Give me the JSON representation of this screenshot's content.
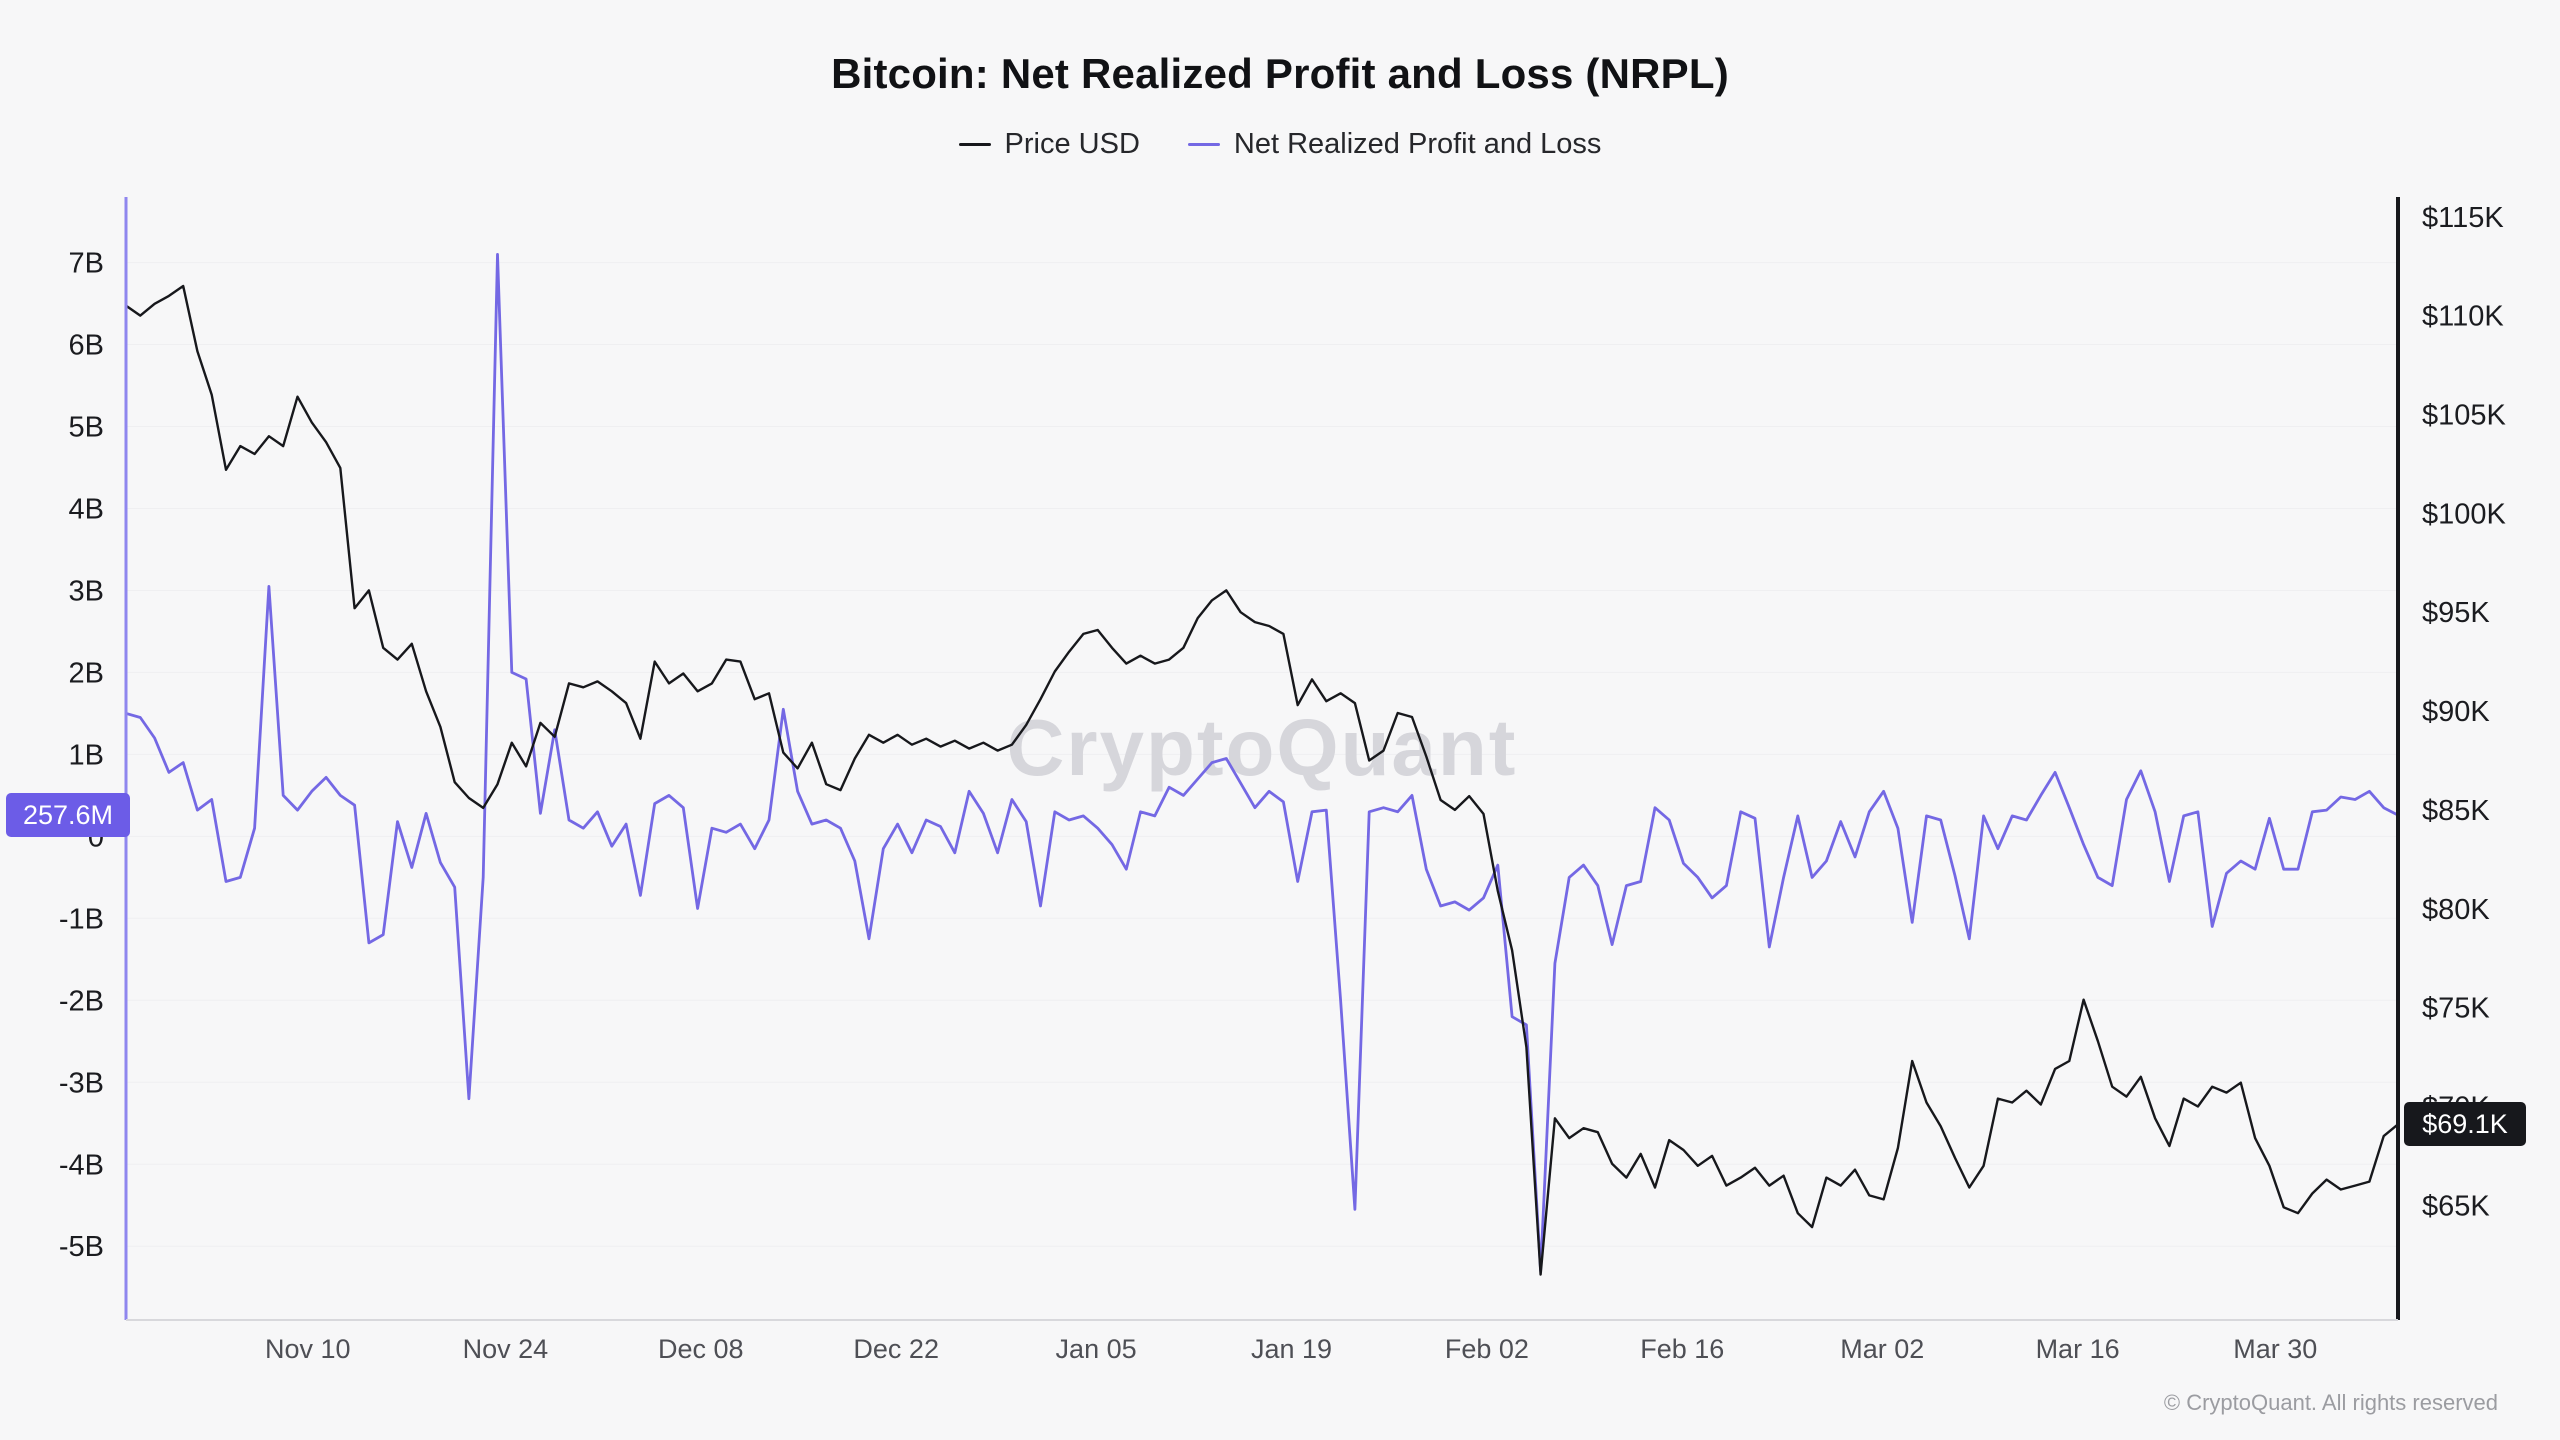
{
  "chart_data": {
    "type": "line",
    "title": "Bitcoin: Net Realized Profit and Loss (NRPL)",
    "watermark": "CryptoQuant",
    "legend_position": "top-center",
    "grid": "horizontal-faint",
    "x_axis": {
      "kind": "time",
      "tick_labels": [
        "Nov 10",
        "Nov 24",
        "Dec 08",
        "Dec 22",
        "Jan 05",
        "Jan 19",
        "Feb 02",
        "Feb 16",
        "Mar 02",
        "Mar 16",
        "Mar 30"
      ],
      "tick_positions": [
        0.08,
        0.167,
        0.253,
        0.339,
        0.427,
        0.513,
        0.599,
        0.685,
        0.773,
        0.859,
        0.946
      ]
    },
    "left_axis": {
      "title": "Net Realized Profit and Loss",
      "unit": "USD billions",
      "tick_labels": [
        "7B",
        "6B",
        "5B",
        "4B",
        "3B",
        "2B",
        "1B",
        "0",
        "-1B",
        "-2B",
        "-3B",
        "-4B",
        "-5B"
      ],
      "tick_values": [
        7,
        6,
        5,
        4,
        3,
        2,
        1,
        0,
        -1,
        -2,
        -3,
        -4,
        -5
      ],
      "range": [
        -5.9,
        7.8
      ]
    },
    "right_axis": {
      "title": "Price USD",
      "unit": "USD thousands",
      "tick_labels": [
        "$115K",
        "$110K",
        "$105K",
        "$100K",
        "$95K",
        "$90K",
        "$85K",
        "$80K",
        "$75K",
        "$70K",
        "$65K"
      ],
      "tick_values": [
        115,
        110,
        105,
        100,
        95,
        90,
        85,
        80,
        75,
        70,
        65
      ],
      "range": [
        59.2,
        116
      ]
    },
    "series": [
      {
        "name": "Price USD",
        "axis": "right",
        "color": "#17181c",
        "unit": "USD (thousands)",
        "last_value_label": "$69.1K",
        "values": [
          110.5,
          110.0,
          110.6,
          111.0,
          111.5,
          108.2,
          106.0,
          102.2,
          103.4,
          103.0,
          103.9,
          103.4,
          105.9,
          104.6,
          103.6,
          102.3,
          95.2,
          96.1,
          93.2,
          92.6,
          93.4,
          91.0,
          89.2,
          86.4,
          85.6,
          85.1,
          86.3,
          88.4,
          87.2,
          89.4,
          88.7,
          91.4,
          91.2,
          91.5,
          91.0,
          90.4,
          88.6,
          92.5,
          91.4,
          91.9,
          91.0,
          91.4,
          92.6,
          92.5,
          90.6,
          90.9,
          87.9,
          87.1,
          88.4,
          86.3,
          86.0,
          87.6,
          88.8,
          88.4,
          88.8,
          88.3,
          88.6,
          88.2,
          88.5,
          88.1,
          88.4,
          88.0,
          88.3,
          89.3,
          90.6,
          92.0,
          93.0,
          93.9,
          94.1,
          93.2,
          92.4,
          92.8,
          92.4,
          92.6,
          93.2,
          94.7,
          95.6,
          96.1,
          95.0,
          94.5,
          94.3,
          93.9,
          90.3,
          91.6,
          90.5,
          90.9,
          90.4,
          87.5,
          88.0,
          89.9,
          89.7,
          87.7,
          85.5,
          85.0,
          85.7,
          84.8,
          80.9,
          77.9,
          73.0,
          61.5,
          69.4,
          68.4,
          68.9,
          68.7,
          67.1,
          66.4,
          67.6,
          65.9,
          68.3,
          67.8,
          67.0,
          67.5,
          66.0,
          66.4,
          66.9,
          66.0,
          66.5,
          64.6,
          63.9,
          66.4,
          66.0,
          66.8,
          65.5,
          65.3,
          67.9,
          72.3,
          70.2,
          69.0,
          67.4,
          65.9,
          67.0,
          70.4,
          70.2,
          70.8,
          70.1,
          71.9,
          72.3,
          75.4,
          73.3,
          71.0,
          70.5,
          71.5,
          69.4,
          68.0,
          70.4,
          70.0,
          71.0,
          70.7,
          71.2,
          68.4,
          67.0,
          64.9,
          64.6,
          65.6,
          66.3,
          65.8,
          66.0,
          66.2,
          68.5,
          69.1
        ]
      },
      {
        "name": "Net Realized Profit and Loss",
        "axis": "left",
        "color": "#7468e4",
        "unit": "USD (billions)",
        "last_value_label": "257.6M",
        "values": [
          1.5,
          1.45,
          1.2,
          0.78,
          0.9,
          0.32,
          0.45,
          -0.55,
          -0.5,
          0.1,
          3.05,
          0.5,
          0.32,
          0.55,
          0.72,
          0.5,
          0.38,
          -1.3,
          -1.2,
          0.18,
          -0.38,
          0.28,
          -0.32,
          -0.62,
          -3.2,
          -0.5,
          7.1,
          2.0,
          1.92,
          0.28,
          1.3,
          0.2,
          0.1,
          0.3,
          -0.12,
          0.15,
          -0.72,
          0.4,
          0.5,
          0.35,
          -0.88,
          0.1,
          0.05,
          0.15,
          -0.15,
          0.2,
          1.55,
          0.55,
          0.15,
          0.2,
          0.1,
          -0.3,
          -1.25,
          -0.15,
          0.15,
          -0.2,
          0.2,
          0.12,
          -0.2,
          0.55,
          0.28,
          -0.2,
          0.45,
          0.18,
          -0.85,
          0.3,
          0.2,
          0.25,
          0.1,
          -0.1,
          -0.4,
          0.3,
          0.25,
          0.6,
          0.5,
          0.7,
          0.9,
          0.95,
          0.65,
          0.35,
          0.55,
          0.42,
          -0.55,
          0.3,
          0.32,
          -2.0,
          -4.55,
          0.3,
          0.35,
          0.3,
          0.5,
          -0.4,
          -0.85,
          -0.8,
          -0.9,
          -0.75,
          -0.35,
          -2.2,
          -2.3,
          -5.3,
          -1.55,
          -0.5,
          -0.35,
          -0.6,
          -1.32,
          -0.6,
          -0.55,
          0.35,
          0.2,
          -0.33,
          -0.5,
          -0.75,
          -0.6,
          0.3,
          0.22,
          -1.35,
          -0.5,
          0.25,
          -0.5,
          -0.3,
          0.18,
          -0.25,
          0.3,
          0.55,
          0.1,
          -1.05,
          0.25,
          0.2,
          -0.48,
          -1.25,
          0.25,
          -0.15,
          0.25,
          0.2,
          0.5,
          0.78,
          0.35,
          -0.1,
          -0.5,
          -0.6,
          0.45,
          0.8,
          0.3,
          -0.55,
          0.25,
          0.3,
          -1.1,
          -0.45,
          -0.3,
          -0.4,
          0.22,
          -0.4,
          -0.4,
          0.3,
          0.32,
          0.48,
          0.45,
          0.55,
          0.35,
          0.26
        ]
      }
    ]
  },
  "badges": {
    "nrpl_last": {
      "text": "257.6M",
      "value_billions": 0.2576,
      "bg": "#6c5ce7",
      "fg": "#ffffff"
    },
    "price_last": {
      "text": "$69.1K",
      "value_thousands": 69.1,
      "bg": "#17181c",
      "fg": "#ffffff"
    }
  },
  "footer": {
    "copyright": "© CryptoQuant. All rights reserved"
  },
  "colors": {
    "background": "#f7f7f8",
    "accent_purple": "#7468e4",
    "price_black": "#17181c",
    "axis_left_spine": "#8f86ee",
    "axis_right_spine": "#17181c",
    "axis_bottom": "#d8d8dc",
    "watermark": "#d6d6db",
    "tick_label": "#1b1c20",
    "x_label": "#4e4f55"
  }
}
